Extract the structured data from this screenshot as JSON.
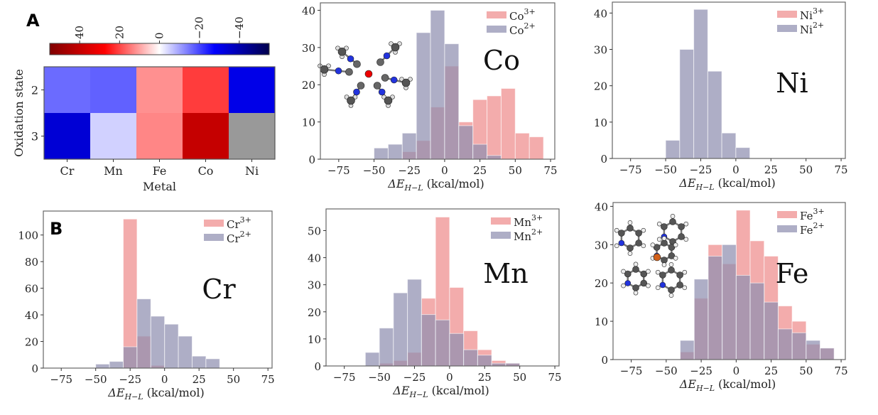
{
  "panel_labels": {
    "a": "A",
    "b": "B"
  },
  "colors": {
    "ox3": "#ee8c8c",
    "ox2": "#8f8fb0",
    "frame": "#666666",
    "nan": "#999999"
  },
  "chart_data": [
    {
      "id": "heatmap",
      "type": "heatmap",
      "title": "",
      "xlabel": "Metal",
      "ylabel": "Oxidation state",
      "x_categories": [
        "Cr",
        "Mn",
        "Fe",
        "Co",
        "Ni"
      ],
      "y_categories": [
        "2",
        "3"
      ],
      "values": [
        [
          -16,
          -17,
          12,
          21,
          -31
        ],
        [
          -34,
          -5,
          13,
          40,
          null
        ]
      ],
      "colorbar": {
        "range": [
          55,
          -55
        ],
        "ticks": [
          40,
          20,
          0,
          -20,
          -40
        ],
        "tick_labels": [
          "40",
          "20",
          "0",
          "−20",
          "−40"
        ],
        "colormap": "seismic (reversed: red positive, blue negative)"
      }
    },
    {
      "id": "co",
      "type": "bar",
      "metal": "Co",
      "xlabel": "ΔE",
      "xlabel_sub": "H−L",
      "xlabel_unit": "(kcal/mol)",
      "xlim": [
        -88,
        78
      ],
      "ylim": [
        0,
        42
      ],
      "xticks": [
        -75,
        -50,
        -25,
        0,
        25,
        50,
        75
      ],
      "xtick_labels": [
        "−75",
        "−50",
        "−25",
        "0",
        "25",
        "50",
        "75"
      ],
      "yticks": [
        0,
        10,
        20,
        30,
        40
      ],
      "ytick_labels": [
        "0",
        "10",
        "20",
        "30",
        "40"
      ],
      "bin_width": 10,
      "legend": [
        {
          "base": "Co",
          "sup": "3+"
        },
        {
          "base": "Co",
          "sup": "2+"
        }
      ],
      "legend_position": "top-right",
      "series": [
        {
          "name": "Co3+",
          "bin_starts": [
            -30,
            -20,
            -10,
            0,
            10,
            20,
            30,
            40,
            50,
            60
          ],
          "values": [
            2,
            5,
            14,
            25,
            10,
            16,
            17,
            19,
            7,
            6
          ]
        },
        {
          "name": "Co2+",
          "bin_starts": [
            -50,
            -40,
            -30,
            -20,
            -10,
            0,
            10,
            20,
            30
          ],
          "values": [
            3,
            4,
            7,
            34,
            40,
            31,
            9,
            4,
            1
          ]
        }
      ],
      "inset": "Co complex with six methyl isocyanide ligands"
    },
    {
      "id": "ni",
      "type": "bar",
      "metal": "Ni",
      "xlabel": "ΔE",
      "xlabel_sub": "H−L",
      "xlabel_unit": "(kcal/mol)",
      "xlim": [
        -88,
        78
      ],
      "ylim": [
        0,
        43
      ],
      "xticks": [
        -75,
        -50,
        -25,
        0,
        25,
        50,
        75
      ],
      "xtick_labels": [
        "−75",
        "−50",
        "−25",
        "0",
        "25",
        "50",
        "75"
      ],
      "yticks": [
        0,
        10,
        20,
        30,
        40
      ],
      "ytick_labels": [
        "0",
        "10",
        "20",
        "30",
        "40"
      ],
      "bin_width": 10,
      "legend": [
        {
          "base": "Ni",
          "sup": "3+"
        },
        {
          "base": "Ni",
          "sup": "2+"
        }
      ],
      "legend_position": "top-right",
      "series": [
        {
          "name": "Ni3+",
          "bin_starts": [],
          "values": []
        },
        {
          "name": "Ni2+",
          "bin_starts": [
            -50,
            -40,
            -30,
            -20,
            -10,
            0
          ],
          "values": [
            5,
            30,
            41,
            24,
            7,
            3
          ]
        }
      ]
    },
    {
      "id": "cr",
      "type": "bar",
      "metal": "Cr",
      "xlabel": "ΔE",
      "xlabel_sub": "H−L",
      "xlabel_unit": "(kcal/mol)",
      "xlim": [
        -88,
        78
      ],
      "ylim": [
        0,
        118
      ],
      "xticks": [
        -75,
        -50,
        -25,
        0,
        25,
        50,
        75
      ],
      "xtick_labels": [
        "−75",
        "−50",
        "−25",
        "0",
        "25",
        "50",
        "75"
      ],
      "yticks": [
        0,
        20,
        40,
        60,
        80,
        100
      ],
      "ytick_labels": [
        "0",
        "20",
        "40",
        "60",
        "80",
        "100"
      ],
      "bin_width": 10,
      "legend": [
        {
          "base": "Cr",
          "sup": "3+"
        },
        {
          "base": "Cr",
          "sup": "2+"
        }
      ],
      "legend_position": "top-right",
      "series": [
        {
          "name": "Cr3+",
          "bin_starts": [
            -30,
            -20,
            -10
          ],
          "values": [
            112,
            24,
            2
          ]
        },
        {
          "name": "Cr2+",
          "bin_starts": [
            -50,
            -40,
            -30,
            -20,
            -10,
            0,
            10,
            20,
            30
          ],
          "values": [
            3,
            5,
            16,
            52,
            39,
            33,
            24,
            9,
            7
          ]
        }
      ]
    },
    {
      "id": "mn",
      "type": "bar",
      "metal": "Mn",
      "xlabel": "ΔE",
      "xlabel_sub": "H−L",
      "xlabel_unit": "(kcal/mol)",
      "xlim": [
        -88,
        78
      ],
      "ylim": [
        0,
        58
      ],
      "xticks": [
        -75,
        -50,
        -25,
        0,
        25,
        50,
        75
      ],
      "xtick_labels": [
        "−75",
        "−50",
        "−25",
        "0",
        "25",
        "50",
        "75"
      ],
      "yticks": [
        0,
        10,
        20,
        30,
        40,
        50
      ],
      "ytick_labels": [
        "0",
        "10",
        "20",
        "30",
        "40",
        "50"
      ],
      "bin_width": 10,
      "legend": [
        {
          "base": "Mn",
          "sup": "3+"
        },
        {
          "base": "Mn",
          "sup": "2+"
        }
      ],
      "legend_position": "top-right",
      "series": [
        {
          "name": "Mn3+",
          "bin_starts": [
            -50,
            -40,
            -30,
            -20,
            -10,
            0,
            10,
            20,
            30,
            40
          ],
          "values": [
            1,
            2,
            5,
            25,
            55,
            29,
            13,
            6,
            2,
            1
          ]
        },
        {
          "name": "Mn2+",
          "bin_starts": [
            -60,
            -50,
            -40,
            -30,
            -20,
            -10,
            0,
            10,
            20,
            30,
            40
          ],
          "values": [
            5,
            14,
            27,
            32,
            19,
            17,
            12,
            6,
            4,
            1,
            1
          ]
        }
      ]
    },
    {
      "id": "fe",
      "type": "bar",
      "metal": "Fe",
      "xlabel": "ΔE",
      "xlabel_sub": "H−L",
      "xlabel_unit": "(kcal/mol)",
      "xlim": [
        -88,
        78
      ],
      "ylim": [
        0,
        41
      ],
      "xticks": [
        -75,
        -50,
        -25,
        0,
        25,
        50,
        75
      ],
      "xtick_labels": [
        "−75",
        "−50",
        "−25",
        "0",
        "25",
        "50",
        "75"
      ],
      "yticks": [
        0,
        10,
        20,
        30,
        40
      ],
      "ytick_labels": [
        "0",
        "10",
        "20",
        "30",
        "40"
      ],
      "bin_width": 10,
      "legend": [
        {
          "base": "Fe",
          "sup": "3+"
        },
        {
          "base": "Fe",
          "sup": "2+"
        }
      ],
      "legend_position": "top-right",
      "series": [
        {
          "name": "Fe3+",
          "bin_starts": [
            -40,
            -30,
            -20,
            -10,
            0,
            10,
            20,
            30,
            40,
            50,
            60
          ],
          "values": [
            2,
            16,
            30,
            25,
            39,
            31,
            27,
            14,
            10,
            4,
            3
          ]
        },
        {
          "name": "Fe2+",
          "bin_starts": [
            -40,
            -30,
            -20,
            -10,
            0,
            10,
            20,
            30,
            40,
            50,
            60
          ],
          "values": [
            5,
            21,
            27,
            30,
            22,
            20,
            15,
            8,
            7,
            5,
            3
          ]
        }
      ],
      "inset": "Fe complex with bipyridine-type ligands"
    }
  ]
}
